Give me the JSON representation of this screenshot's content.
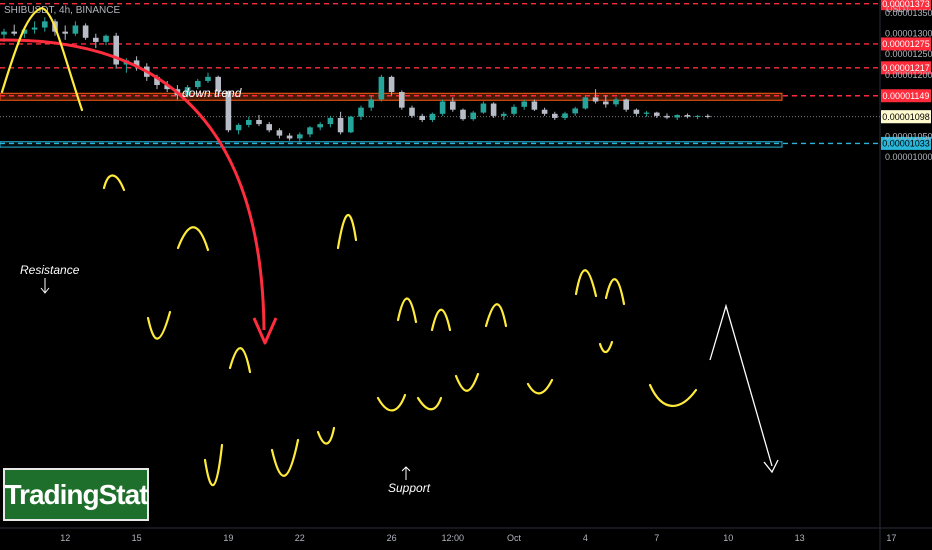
{
  "header": {
    "symbol": "SHIBUSDT, 4h, BINANCE"
  },
  "colors": {
    "background": "#000000",
    "up": "#26a69a",
    "down": "#b8bcc6",
    "resistance_zone": "#ff5a14",
    "support_zone": "#29b6d9",
    "level_line": "#ff2b3b",
    "annotation_yellow": "#ffeb3b",
    "trend_arrow": "#ff2d3d",
    "projection": "#ffffff",
    "brand_green": "#1f6f2c"
  },
  "chart_data": {
    "type": "candlestick",
    "title": "SHIBUSDT, 4h, BINANCE",
    "unit_label": "USDT",
    "ylim": [
      9.7e-07,
      1.382e-05
    ],
    "ytick_labels": [
      "0.00001350",
      "0.00001300",
      "0.00001250",
      "0.00001200",
      "0.00001050",
      "0.00001000"
    ],
    "yticks": [
      1.35e-05,
      1.3e-05,
      1.25e-05,
      1.2e-05,
      1.05e-05,
      1e-05
    ],
    "xtick_labels": [
      "12",
      "15",
      "19",
      "22",
      "26",
      "12:00",
      "Oct",
      "4",
      "7",
      "10",
      "13",
      "17"
    ],
    "xtick_bar_index": [
      6,
      13,
      22,
      29,
      38,
      44,
      50,
      57,
      64,
      71,
      78,
      87
    ],
    "levels": [
      {
        "value": 1.373e-05,
        "label": "0.00001373",
        "style": "dashed"
      },
      {
        "value": 1.275e-05,
        "label": "0.00001275",
        "style": "dashed"
      },
      {
        "value": 1.217e-05,
        "label": "0.00001217",
        "style": "dashed"
      },
      {
        "value": 1.149e-05,
        "label": "0.00001149",
        "style": "dashed"
      },
      {
        "value": 1.033e-05,
        "label": "0.00001033",
        "style": "dashed",
        "color": "#29b6d9"
      }
    ],
    "last_price": {
      "value": 1.098e-05,
      "label": "0.00001098"
    },
    "zones": [
      {
        "name": "Resistance",
        "low": 1.138e-05,
        "high": 1.155e-05
      },
      {
        "name": "Support",
        "low": 1.024e-05,
        "high": 1.037e-05
      }
    ],
    "annotations": [
      {
        "text": "down trend"
      },
      {
        "text": "Resistance"
      },
      {
        "text": "Support"
      }
    ],
    "candles": [
      [
        1.298e-05,
        1.312e-05,
        1.28e-05,
        1.305e-05
      ],
      [
        1.305e-05,
        1.322e-05,
        1.295e-05,
        1.3e-05
      ],
      [
        1.3e-05,
        1.318e-05,
        1.29e-05,
        1.31e-05
      ],
      [
        1.31e-05,
        1.33e-05,
        1.3e-05,
        1.315e-05
      ],
      [
        1.315e-05,
        1.34e-05,
        1.305e-05,
        1.33e-05
      ],
      [
        1.33e-05,
        1.335e-05,
        1.295e-05,
        1.305e-05
      ],
      [
        1.305e-05,
        1.32e-05,
        1.285e-05,
        1.3e-05
      ],
      [
        1.3e-05,
        1.33e-05,
        1.295e-05,
        1.32e-05
      ],
      [
        1.32e-05,
        1.325e-05,
        1.285e-05,
        1.29e-05
      ],
      [
        1.29e-05,
        1.3e-05,
        1.265e-05,
        1.28e-05
      ],
      [
        1.28e-05,
        1.298e-05,
        1.272e-05,
        1.295e-05
      ],
      [
        1.295e-05,
        1.302e-05,
        1.215e-05,
        1.225e-05
      ],
      [
        1.225e-05,
        1.24e-05,
        1.205e-05,
        1.235e-05
      ],
      [
        1.235e-05,
        1.245e-05,
        1.21e-05,
        1.22e-05
      ],
      [
        1.22e-05,
        1.228e-05,
        1.185e-05,
        1.195e-05
      ],
      [
        1.195e-05,
        1.2e-05,
        1.165e-05,
        1.175e-05
      ],
      [
        1.175e-05,
        1.185e-05,
        1.158e-05,
        1.165e-05
      ],
      [
        1.165e-05,
        1.175e-05,
        1.14e-05,
        1.15e-05
      ],
      [
        1.15e-05,
        1.175e-05,
        1.145e-05,
        1.17e-05
      ],
      [
        1.17e-05,
        1.19e-05,
        1.165e-05,
        1.185e-05
      ],
      [
        1.185e-05,
        1.205e-05,
        1.18e-05,
        1.195e-05
      ],
      [
        1.195e-05,
        1.198e-05,
        1.15e-05,
        1.16e-05
      ],
      [
        1.16e-05,
        1.162e-05,
        1.06e-05,
        1.065e-05
      ],
      [
        1.065e-05,
        1.082e-05,
        1.055e-05,
        1.078e-05
      ],
      [
        1.078e-05,
        1.098e-05,
        1.072e-05,
        1.09e-05
      ],
      [
        1.09e-05,
        1.102e-05,
        1.075e-05,
        1.08e-05
      ],
      [
        1.08e-05,
        1.085e-05,
        1.06e-05,
        1.065e-05
      ],
      [
        1.065e-05,
        1.07e-05,
        1.045e-05,
        1.052e-05
      ],
      [
        1.052e-05,
        1.058e-05,
        1.04e-05,
        1.045e-05
      ],
      [
        1.045e-05,
        1.06e-05,
        1.035e-05,
        1.055e-05
      ],
      [
        1.055e-05,
        1.075e-05,
        1.048e-05,
        1.072e-05
      ],
      [
        1.072e-05,
        1.085e-05,
        1.065e-05,
        1.08e-05
      ],
      [
        1.08e-05,
        1.1e-05,
        1.072e-05,
        1.095e-05
      ],
      [
        1.095e-05,
        1.11e-05,
        1.055e-05,
        1.06e-05
      ],
      [
        1.06e-05,
        1.1e-05,
        1.058e-05,
        1.098e-05
      ],
      [
        1.098e-05,
        1.125e-05,
        1.09e-05,
        1.12e-05
      ],
      [
        1.12e-05,
        1.15e-05,
        1.112e-05,
        1.14e-05
      ],
      [
        1.14e-05,
        1.2e-05,
        1.135e-05,
        1.195e-05
      ],
      [
        1.195e-05,
        1.198e-05,
        1.15e-05,
        1.158e-05
      ],
      [
        1.158e-05,
        1.162e-05,
        1.115e-05,
        1.12e-05
      ],
      [
        1.12e-05,
        1.125e-05,
        1.095e-05,
        1.1e-05
      ],
      [
        1.1e-05,
        1.105e-05,
        1.085e-05,
        1.09e-05
      ],
      [
        1.09e-05,
        1.108e-05,
        1.085e-05,
        1.105e-05
      ],
      [
        1.105e-05,
        1.14e-05,
        1.1e-05,
        1.135e-05
      ],
      [
        1.135e-05,
        1.145e-05,
        1.11e-05,
        1.115e-05
      ],
      [
        1.115e-05,
        1.118e-05,
        1.088e-05,
        1.092e-05
      ],
      [
        1.092e-05,
        1.112e-05,
        1.088e-05,
        1.108e-05
      ],
      [
        1.108e-05,
        1.135e-05,
        1.105e-05,
        1.13e-05
      ],
      [
        1.13e-05,
        1.133e-05,
        1.095e-05,
        1.1e-05
      ],
      [
        1.1e-05,
        1.11e-05,
        1.09e-05,
        1.105e-05
      ],
      [
        1.105e-05,
        1.128e-05,
        1.1e-05,
        1.122e-05
      ],
      [
        1.122e-05,
        1.14e-05,
        1.115e-05,
        1.135e-05
      ],
      [
        1.135e-05,
        1.14e-05,
        1.112e-05,
        1.115e-05
      ],
      [
        1.115e-05,
        1.12e-05,
        1.1e-05,
        1.105e-05
      ],
      [
        1.105e-05,
        1.11e-05,
        1.09e-05,
        1.095e-05
      ],
      [
        1.095e-05,
        1.11e-05,
        1.09e-05,
        1.106e-05
      ],
      [
        1.106e-05,
        1.122e-05,
        1.1e-05,
        1.118e-05
      ],
      [
        1.118e-05,
        1.15e-05,
        1.115e-05,
        1.145e-05
      ],
      [
        1.145e-05,
        1.165e-05,
        1.13e-05,
        1.135e-05
      ],
      [
        1.135e-05,
        1.15e-05,
        1.12e-05,
        1.128e-05
      ],
      [
        1.128e-05,
        1.145e-05,
        1.122e-05,
        1.14e-05
      ],
      [
        1.14e-05,
        1.142e-05,
        1.11e-05,
        1.115e-05
      ],
      [
        1.115e-05,
        1.118e-05,
        1.1e-05,
        1.105e-05
      ],
      [
        1.105e-05,
        1.112e-05,
        1.098e-05,
        1.108e-05
      ],
      [
        1.108e-05,
        1.11e-05,
        1.095e-05,
        1.1e-05
      ],
      [
        1.1e-05,
        1.106e-05,
        1.092e-05,
        1.096e-05
      ],
      [
        1.096e-05,
        1.104e-05,
        1.09e-05,
        1.102e-05
      ],
      [
        1.102e-05,
        1.106e-05,
        1.094e-05,
        1.098e-05
      ],
      [
        1.098e-05,
        1.102e-05,
        1.092e-05,
        1.1e-05
      ],
      [
        1.1e-05,
        1.104e-05,
        1.094e-05,
        1.098e-05
      ]
    ]
  }
}
